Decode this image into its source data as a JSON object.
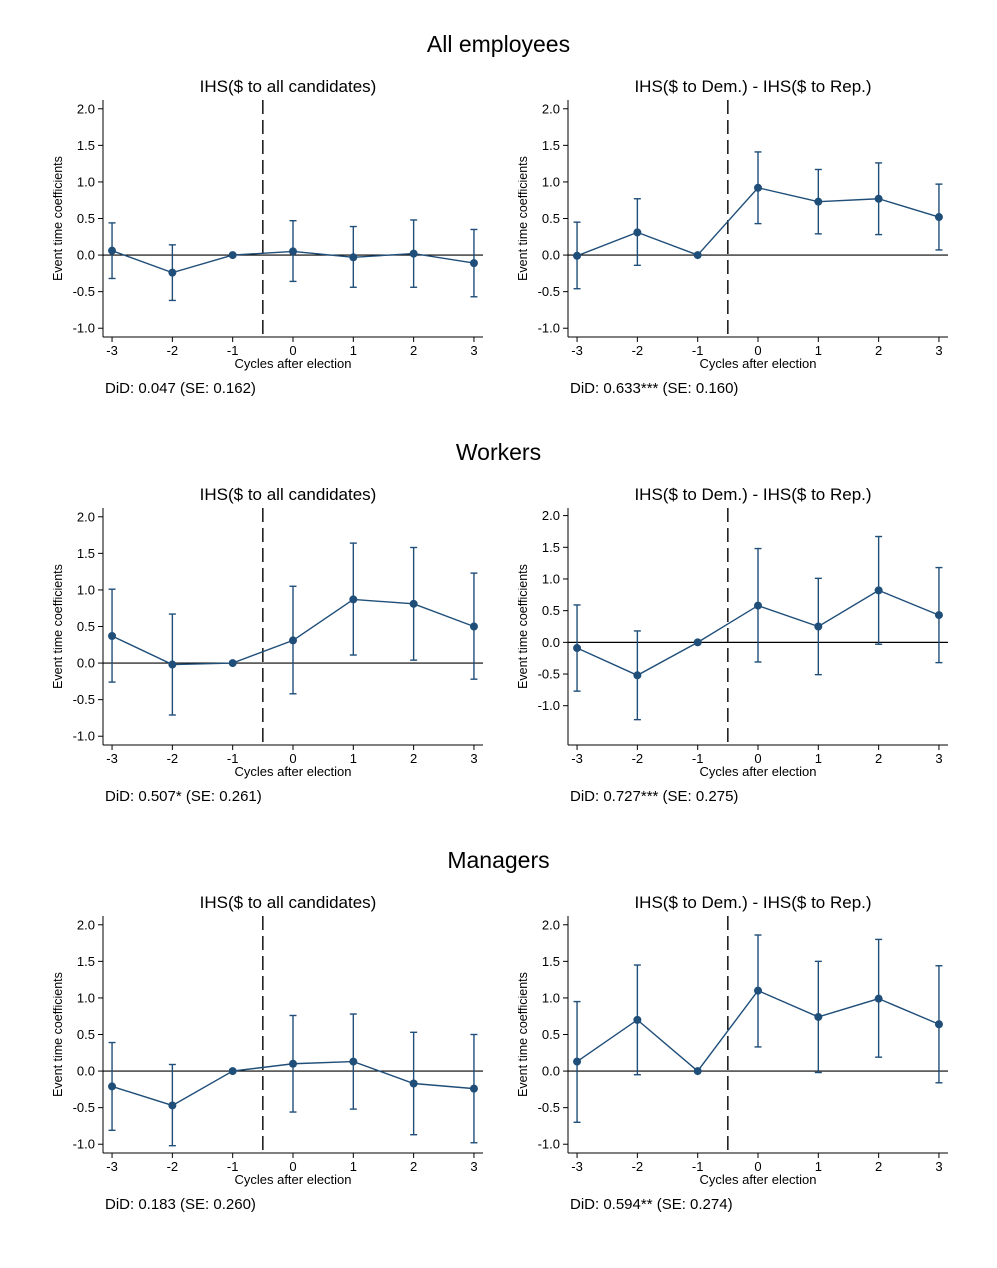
{
  "sections": [
    {
      "title": "All employees",
      "panels": [
        {
          "title": "IHS($ to all candidates)",
          "did": "DiD: 0.047 (SE: 0.162)"
        },
        {
          "title": "IHS($ to Dem.) - IHS($ to Rep.)",
          "did": "DiD: 0.633*** (SE: 0.160)"
        }
      ]
    },
    {
      "title": "Workers",
      "panels": [
        {
          "title": "IHS($ to all candidates)",
          "did": "DiD: 0.507* (SE: 0.261)"
        },
        {
          "title": "IHS($ to Dem.) - IHS($ to Rep.)",
          "did": "DiD: 0.727*** (SE: 0.275)"
        }
      ]
    },
    {
      "title": "Managers",
      "panels": [
        {
          "title": "IHS($ to all candidates)",
          "did": "DiD: 0.183 (SE: 0.260)"
        },
        {
          "title": "IHS($ to Dem.) - IHS($ to Rep.)",
          "did": "DiD: 0.594** (SE: 0.274)"
        }
      ]
    }
  ],
  "chart_data": [
    {
      "type": "scatter",
      "title": "IHS($ to all candidates)",
      "xlabel": "Cycles after election",
      "ylabel": "Event time coefficients",
      "x": [
        -3,
        -2,
        -1,
        0,
        1,
        2,
        3
      ],
      "ylim": [
        -1.0,
        2.0
      ],
      "yticks": [
        "2.0",
        "1.5",
        "1.0",
        "0.5",
        "0.0",
        "-0.5",
        "-1.0"
      ],
      "xticks": [
        "-3",
        "-2",
        "-1",
        "0",
        "1",
        "2",
        "3"
      ],
      "y": [
        0.06,
        -0.24,
        0.0,
        0.05,
        -0.03,
        0.02,
        -0.11
      ],
      "ci_low": [
        -0.32,
        -0.62,
        0.0,
        -0.36,
        -0.44,
        -0.44,
        -0.57
      ],
      "ci_high": [
        0.44,
        0.14,
        0.0,
        0.47,
        0.39,
        0.48,
        0.35
      ],
      "vline_x": -0.5,
      "hline_y": 0.0,
      "color": "#1f4e79"
    },
    {
      "type": "scatter",
      "title": "IHS($ to Dem.) - IHS($ to Rep.)",
      "xlabel": "Cycles after election",
      "ylabel": "Event time coefficients",
      "x": [
        -3,
        -2,
        -1,
        0,
        1,
        2,
        3
      ],
      "ylim": [
        -1.0,
        2.0
      ],
      "yticks": [
        "2.0",
        "1.5",
        "1.0",
        "0.5",
        "0.0",
        "-0.5",
        "-1.0"
      ],
      "xticks": [
        "-3",
        "-2",
        "-1",
        "0",
        "1",
        "2",
        "3"
      ],
      "y": [
        -0.01,
        0.31,
        0.0,
        0.92,
        0.73,
        0.77,
        0.52
      ],
      "ci_low": [
        -0.46,
        -0.14,
        0.0,
        0.43,
        0.29,
        0.28,
        0.07
      ],
      "ci_high": [
        0.45,
        0.77,
        0.0,
        1.41,
        1.17,
        1.26,
        0.97
      ],
      "vline_x": -0.5,
      "hline_y": 0.0,
      "color": "#1f4e79"
    },
    {
      "type": "scatter",
      "title": "IHS($ to all candidates)",
      "xlabel": "Cycles after election",
      "ylabel": "Event time coefficients",
      "x": [
        -3,
        -2,
        -1,
        0,
        1,
        2,
        3
      ],
      "ylim": [
        -1.0,
        2.0
      ],
      "yticks": [
        "2.0",
        "1.5",
        "1.0",
        "0.5",
        "0.0",
        "-0.5",
        "-1.0"
      ],
      "xticks": [
        "-3",
        "-2",
        "-1",
        "0",
        "1",
        "2",
        "3"
      ],
      "y": [
        0.37,
        -0.02,
        0.0,
        0.31,
        0.87,
        0.81,
        0.5
      ],
      "ci_low": [
        -0.26,
        -0.71,
        0.0,
        -0.42,
        0.11,
        0.04,
        -0.22
      ],
      "ci_high": [
        1.01,
        0.67,
        0.0,
        1.05,
        1.64,
        1.58,
        1.23
      ],
      "vline_x": -0.5,
      "hline_y": 0.0,
      "color": "#1f4e79"
    },
    {
      "type": "scatter",
      "title": "IHS($ to Dem.) - IHS($ to Rep.)",
      "xlabel": "Cycles after election",
      "ylabel": "Event time coefficients",
      "x": [
        -3,
        -2,
        -1,
        0,
        1,
        2,
        3
      ],
      "ylim": [
        -1.5,
        2.0
      ],
      "yticks": [
        "2.0",
        "1.5",
        "1.0",
        "0.5",
        "0.0",
        "-0.5",
        "-1.0"
      ],
      "xticks": [
        "-3",
        "-2",
        "-1",
        "0",
        "1",
        "2",
        "3"
      ],
      "y": [
        -0.09,
        -0.52,
        0.0,
        0.58,
        0.25,
        0.82,
        0.43
      ],
      "ci_low": [
        -0.77,
        -1.22,
        0.0,
        -0.31,
        -0.51,
        -0.03,
        -0.32
      ],
      "ci_high": [
        0.59,
        0.18,
        0.0,
        1.48,
        1.01,
        1.67,
        1.18
      ],
      "vline_x": -0.5,
      "hline_y": 0.0,
      "color": "#1f4e79"
    },
    {
      "type": "scatter",
      "title": "IHS($ to all candidates)",
      "xlabel": "Cycles after election",
      "ylabel": "Event time coefficients",
      "x": [
        -3,
        -2,
        -1,
        0,
        1,
        2,
        3
      ],
      "ylim": [
        -1.0,
        2.0
      ],
      "yticks": [
        "2.0",
        "1.5",
        "1.0",
        "0.5",
        "0.0",
        "-0.5",
        "-1.0"
      ],
      "xticks": [
        "-3",
        "-2",
        "-1",
        "0",
        "1",
        "2",
        "3"
      ],
      "y": [
        -0.21,
        -0.47,
        0.0,
        0.1,
        0.13,
        -0.17,
        -0.24
      ],
      "ci_low": [
        -0.81,
        -1.02,
        0.0,
        -0.56,
        -0.52,
        -0.87,
        -0.98
      ],
      "ci_high": [
        0.39,
        0.09,
        0.0,
        0.76,
        0.78,
        0.53,
        0.5
      ],
      "vline_x": -0.5,
      "hline_y": 0.0,
      "color": "#1f4e79"
    },
    {
      "type": "scatter",
      "title": "IHS($ to Dem.) - IHS($ to Rep.)",
      "xlabel": "Cycles after election",
      "ylabel": "Event time coefficients",
      "x": [
        -3,
        -2,
        -1,
        0,
        1,
        2,
        3
      ],
      "ylim": [
        -1.0,
        2.0
      ],
      "yticks": [
        "2.0",
        "1.5",
        "1.0",
        "0.5",
        "0.0",
        "-0.5",
        "-1.0"
      ],
      "xticks": [
        "-3",
        "-2",
        "-1",
        "0",
        "1",
        "2",
        "3"
      ],
      "y": [
        0.13,
        0.7,
        0.0,
        1.1,
        0.74,
        0.99,
        0.64
      ],
      "ci_low": [
        -0.7,
        -0.05,
        0.0,
        0.33,
        -0.02,
        0.19,
        -0.16
      ],
      "ci_high": [
        0.95,
        1.45,
        0.0,
        1.86,
        1.5,
        1.8,
        1.44
      ],
      "vline_x": -0.5,
      "hline_y": 0.0,
      "color": "#1f4e79"
    }
  ]
}
